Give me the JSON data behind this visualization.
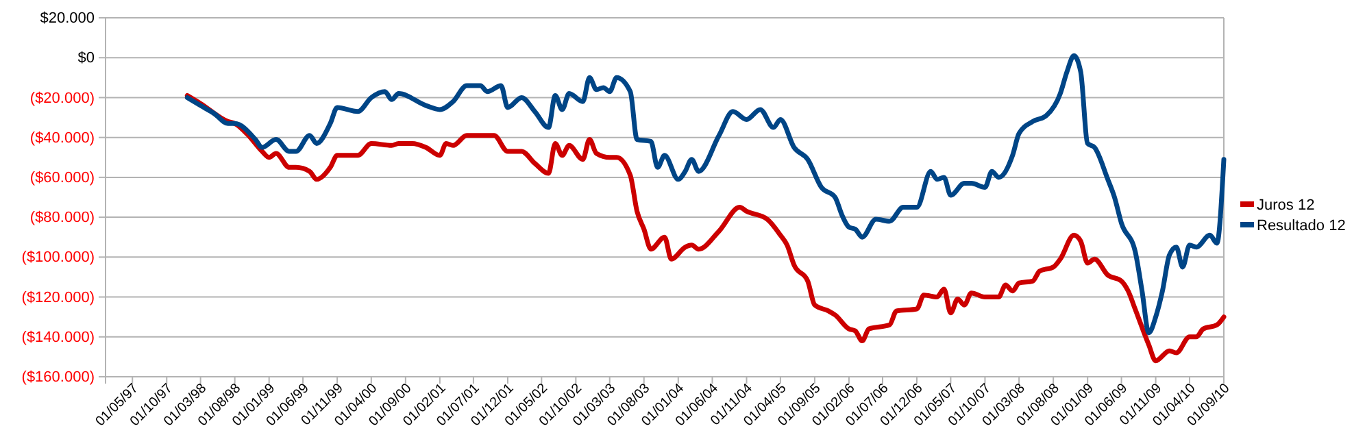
{
  "chart_data": {
    "type": "line",
    "xlim": [
      "1997-01",
      "2010-09"
    ],
    "xticks": [
      {
        "value": "1997-05",
        "label": "01/05/97"
      },
      {
        "value": "1997-10",
        "label": "01/10/97"
      },
      {
        "value": "1998-03",
        "label": "01/03/98"
      },
      {
        "value": "1998-08",
        "label": "01/08/98"
      },
      {
        "value": "1999-01",
        "label": "01/01/99"
      },
      {
        "value": "1999-06",
        "label": "01/06/99"
      },
      {
        "value": "1999-11",
        "label": "01/11/99"
      },
      {
        "value": "2000-04",
        "label": "01/04/00"
      },
      {
        "value": "2000-09",
        "label": "01/09/00"
      },
      {
        "value": "2001-02",
        "label": "01/02/01"
      },
      {
        "value": "2001-07",
        "label": "01/07/01"
      },
      {
        "value": "2001-12",
        "label": "01/12/01"
      },
      {
        "value": "2002-05",
        "label": "01/05/02"
      },
      {
        "value": "2002-10",
        "label": "01/10/02"
      },
      {
        "value": "2003-03",
        "label": "01/03/03"
      },
      {
        "value": "2003-08",
        "label": "01/08/03"
      },
      {
        "value": "2004-01",
        "label": "01/01/04"
      },
      {
        "value": "2004-06",
        "label": "01/06/04"
      },
      {
        "value": "2004-11",
        "label": "01/11/04"
      },
      {
        "value": "2005-04",
        "label": "01/04/05"
      },
      {
        "value": "2005-09",
        "label": "01/09/05"
      },
      {
        "value": "2006-02",
        "label": "01/02/06"
      },
      {
        "value": "2006-07",
        "label": "01/07/06"
      },
      {
        "value": "2006-12",
        "label": "01/12/06"
      },
      {
        "value": "2007-05",
        "label": "01/05/07"
      },
      {
        "value": "2007-10",
        "label": "01/10/07"
      },
      {
        "value": "2008-03",
        "label": "01/03/08"
      },
      {
        "value": "2008-08",
        "label": "01/08/08"
      },
      {
        "value": "2009-01",
        "label": "01/01/09"
      },
      {
        "value": "2009-06",
        "label": "01/06/09"
      },
      {
        "value": "2009-11",
        "label": "01/11/09"
      },
      {
        "value": "2010-04",
        "label": "01/04/10"
      },
      {
        "value": "2010-09",
        "label": "01/09/10"
      }
    ],
    "ylim": [
      -160000,
      20000
    ],
    "yticks": [
      {
        "value": 20000,
        "label": "$20.000"
      },
      {
        "value": 0,
        "label": "$0"
      },
      {
        "value": -20000,
        "label": "($20.000)"
      },
      {
        "value": -40000,
        "label": "($40.000)"
      },
      {
        "value": -60000,
        "label": "($60.000)"
      },
      {
        "value": -80000,
        "label": "($80.000)"
      },
      {
        "value": -100000,
        "label": "($100.000)"
      },
      {
        "value": -120000,
        "label": "($120.000)"
      },
      {
        "value": -140000,
        "label": "($140.000)"
      },
      {
        "value": -160000,
        "label": "($160.000)"
      }
    ],
    "grid": "y",
    "legend": "right",
    "marker": "none",
    "line_style": "solid",
    "series": [
      {
        "name": "Juros 12",
        "color": "#cc0000",
        "x": [
          "1998-01",
          "1998-03",
          "1998-07",
          "1998-08",
          "1998-10",
          "1998-12",
          "1999-01",
          "1999-02",
          "1999-04",
          "1999-05",
          "1999-07",
          "1999-08",
          "1999-10",
          "1999-11",
          "2000-02",
          "2000-04",
          "2000-07",
          "2000-08",
          "2000-10",
          "2000-12",
          "2001-02",
          "2001-03",
          "2001-04",
          "2001-06",
          "2001-08",
          "2001-10",
          "2001-12",
          "2002-02",
          "2002-04",
          "2002-06",
          "2002-07",
          "2002-08",
          "2002-09",
          "2002-11",
          "2002-12",
          "2003-01",
          "2003-03",
          "2003-04",
          "2003-06",
          "2003-07",
          "2003-08",
          "2003-09",
          "2003-11",
          "2003-12",
          "2004-02",
          "2004-03",
          "2004-04",
          "2004-07",
          "2004-10",
          "2004-11",
          "2005-02",
          "2005-04",
          "2005-05",
          "2005-06",
          "2005-08",
          "2005-09",
          "2005-11",
          "2005-12",
          "2006-02",
          "2006-03",
          "2006-04",
          "2006-05",
          "2006-08",
          "2006-09",
          "2006-12",
          "2007-01",
          "2007-03",
          "2007-04",
          "2007-05",
          "2007-06",
          "2007-07",
          "2007-08",
          "2007-10",
          "2007-12",
          "2008-01",
          "2008-02",
          "2008-03",
          "2008-05",
          "2008-06",
          "2008-08",
          "2008-09",
          "2008-11",
          "2008-12",
          "2009-01",
          "2009-02",
          "2009-04",
          "2009-06",
          "2009-07",
          "2009-08",
          "2009-10",
          "2009-11",
          "2010-01",
          "2010-02",
          "2010-04",
          "2010-05",
          "2010-06",
          "2010-08",
          "2010-09"
        ],
        "values": [
          -19000,
          -23000,
          -32000,
          -33000,
          -39000,
          -47000,
          -50000,
          -48000,
          -55000,
          -55000,
          -57000,
          -61000,
          -55000,
          -49000,
          -49000,
          -43000,
          -44000,
          -43000,
          -43000,
          -45000,
          -49000,
          -43000,
          -44000,
          -39000,
          -39000,
          -39000,
          -47000,
          -47000,
          -53000,
          -58000,
          -43000,
          -49000,
          -44000,
          -51000,
          -41000,
          -48000,
          -50000,
          -50000,
          -59000,
          -77000,
          -86000,
          -96000,
          -90000,
          -101000,
          -95000,
          -94000,
          -96000,
          -87000,
          -75000,
          -77000,
          -81000,
          -89000,
          -94000,
          -104000,
          -112000,
          -124000,
          -127000,
          -129000,
          -136000,
          -137000,
          -142000,
          -136000,
          -134000,
          -127000,
          -126000,
          -119000,
          -120000,
          -116000,
          -128000,
          -121000,
          -124000,
          -118000,
          -120000,
          -120000,
          -114000,
          -117000,
          -113000,
          -112000,
          -107000,
          -105000,
          -101000,
          -89000,
          -92000,
          -103000,
          -101000,
          -109000,
          -112000,
          -117000,
          -126000,
          -144000,
          -152000,
          -147000,
          -148000,
          -140000,
          -140000,
          -136000,
          -134000,
          -130000
        ]
      },
      {
        "name": "Resultado 12",
        "color": "#004586",
        "x": [
          "1998-01",
          "1998-03",
          "1998-05",
          "1998-07",
          "1998-08",
          "1998-11",
          "1998-12",
          "1999-02",
          "1999-04",
          "1999-05",
          "1999-07",
          "1999-08",
          "1999-10",
          "1999-11",
          "2000-02",
          "2000-04",
          "2000-06",
          "2000-07",
          "2000-08",
          "2000-12",
          "2001-02",
          "2001-04",
          "2001-06",
          "2001-08",
          "2001-09",
          "2001-11",
          "2001-12",
          "2002-02",
          "2002-04",
          "2002-06",
          "2002-07",
          "2002-08",
          "2002-09",
          "2002-11",
          "2002-12",
          "2003-01",
          "2003-02",
          "2003-03",
          "2003-04",
          "2003-06",
          "2003-07",
          "2003-09",
          "2003-10",
          "2003-11",
          "2004-01",
          "2004-02",
          "2004-03",
          "2004-04",
          "2004-07",
          "2004-09",
          "2004-11",
          "2005-01",
          "2005-03",
          "2005-04",
          "2005-06",
          "2005-08",
          "2005-10",
          "2005-12",
          "2006-01",
          "2006-02",
          "2006-03",
          "2006-04",
          "2006-06",
          "2006-08",
          "2006-10",
          "2006-12",
          "2007-02",
          "2007-03",
          "2007-04",
          "2007-05",
          "2007-07",
          "2007-08",
          "2007-10",
          "2007-11",
          "2007-12",
          "2008-02",
          "2008-03",
          "2008-05",
          "2008-07",
          "2008-09",
          "2008-10",
          "2008-11",
          "2008-12",
          "2009-01",
          "2009-02",
          "2009-04",
          "2009-05",
          "2009-06",
          "2009-08",
          "2009-09",
          "2009-10",
          "2009-11",
          "2009-12",
          "2010-01",
          "2010-02",
          "2010-03",
          "2010-04",
          "2010-05",
          "2010-07",
          "2010-08",
          "2010-09"
        ],
        "values": [
          -20000,
          -24000,
          -28000,
          -33000,
          -33000,
          -41000,
          -45000,
          -41000,
          -47000,
          -47000,
          -39000,
          -43000,
          -33000,
          -25000,
          -27000,
          -20000,
          -17000,
          -21000,
          -18000,
          -24000,
          -26000,
          -22000,
          -14000,
          -14000,
          -17000,
          -14000,
          -25000,
          -20000,
          -27000,
          -35000,
          -19000,
          -26000,
          -18000,
          -22000,
          -10000,
          -16000,
          -15000,
          -17000,
          -10000,
          -17000,
          -41000,
          -42000,
          -55000,
          -49000,
          -61000,
          -57000,
          -51000,
          -57000,
          -39000,
          -27000,
          -31000,
          -26000,
          -35000,
          -31000,
          -45000,
          -51000,
          -65000,
          -70000,
          -79000,
          -85000,
          -86000,
          -90000,
          -81000,
          -82000,
          -75000,
          -75000,
          -57000,
          -61000,
          -60000,
          -69000,
          -63000,
          -63000,
          -65000,
          -57000,
          -60000,
          -49000,
          -38000,
          -32000,
          -29000,
          -18000,
          -7000,
          1000,
          -7000,
          -43000,
          -45000,
          -61000,
          -70000,
          -83000,
          -97000,
          -117000,
          -138000,
          -130000,
          -117000,
          -99000,
          -95000,
          -105000,
          -94000,
          -95000,
          -89000,
          -93000,
          -51000
        ]
      }
    ]
  }
}
